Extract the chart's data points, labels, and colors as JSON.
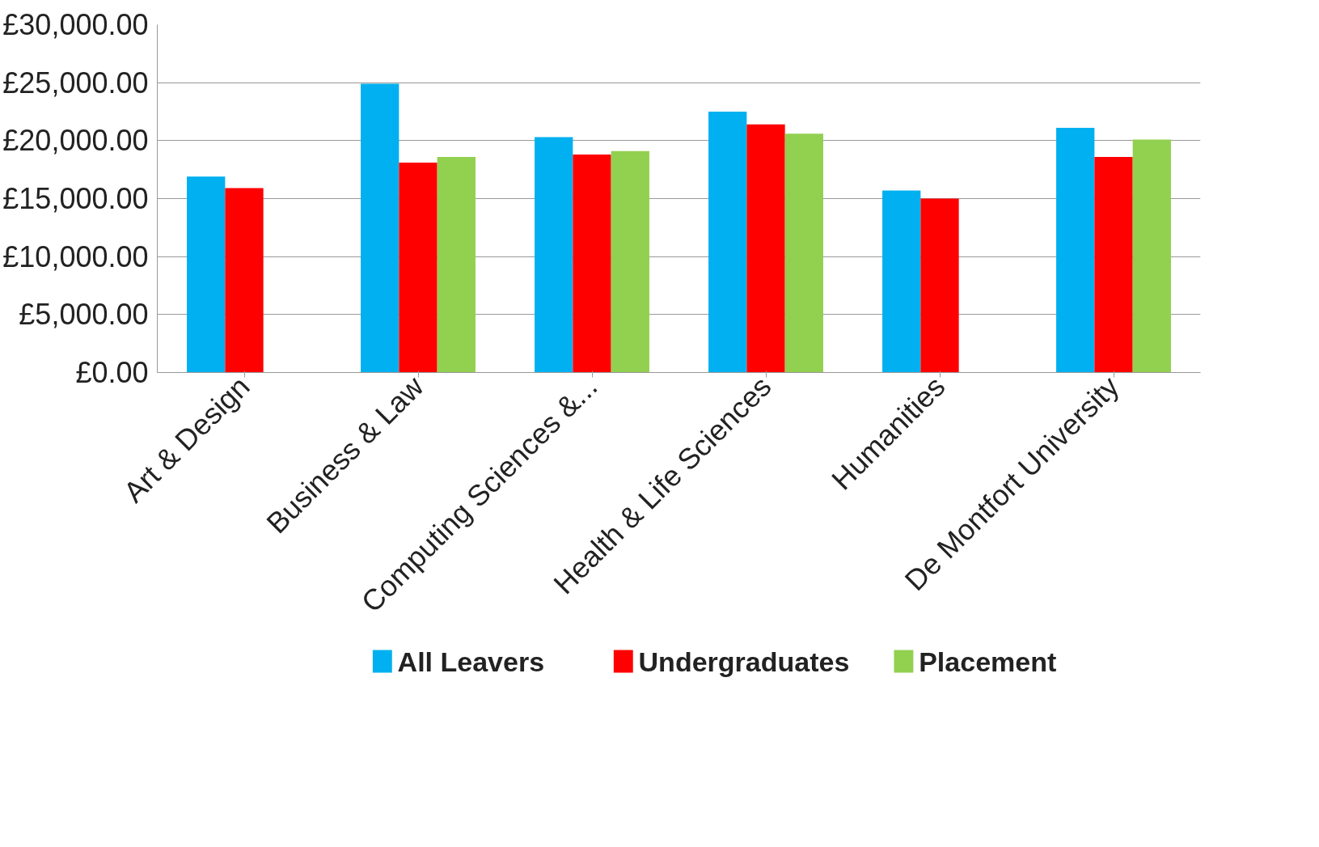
{
  "chart_data": {
    "type": "bar",
    "categories": [
      "Art & Design",
      "Business & Law",
      "Computing Sciences &...",
      "Health & Life Sciences",
      "Humanities",
      "De Montfort University"
    ],
    "series": [
      {
        "name": "All Leavers",
        "color": "#00b0f0",
        "values": [
          16900,
          24900,
          20300,
          22500,
          15700,
          21100
        ]
      },
      {
        "name": "Undergraduates",
        "color": "#ff0000",
        "values": [
          15900,
          18100,
          18800,
          21400,
          15000,
          18600
        ]
      },
      {
        "name": "Placement",
        "color": "#92d050",
        "values": [
          null,
          18600,
          19100,
          20600,
          null,
          20100
        ]
      }
    ],
    "ylim": [
      0,
      30000
    ],
    "yticks": [
      {
        "value": 0,
        "label": "£0.00"
      },
      {
        "value": 5000,
        "label": "£5,000.00"
      },
      {
        "value": 10000,
        "label": "£10,000.00"
      },
      {
        "value": 15000,
        "label": "£15,000.00"
      },
      {
        "value": 20000,
        "label": "£20,000.00"
      },
      {
        "value": 25000,
        "label": "£25,000.00"
      },
      {
        "value": 30000,
        "label": "£30,000.00"
      }
    ],
    "grid": "y",
    "legend": "bottom"
  }
}
